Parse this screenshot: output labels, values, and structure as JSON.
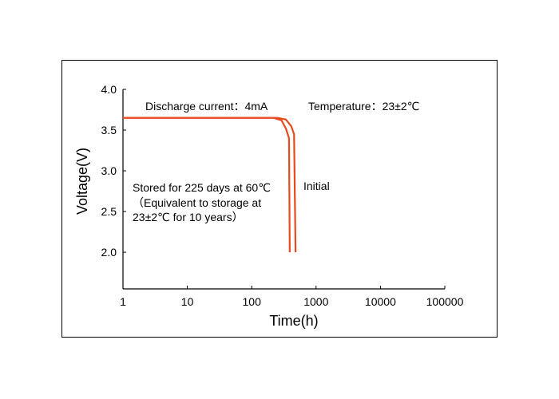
{
  "chart_data": {
    "type": "line",
    "xlabel": "Time(h)",
    "ylabel": "Voltage(V)",
    "x_scale": "log",
    "xlim": [
      1,
      100000
    ],
    "ylim": [
      1.55,
      4.0
    ],
    "x_ticks": [
      1,
      10,
      100,
      1000,
      10000,
      100000
    ],
    "x_tick_labels": [
      "1",
      "10",
      "100",
      "1000",
      "10000",
      "100000"
    ],
    "y_ticks": [
      2.0,
      2.5,
      3.0,
      3.5,
      4.0
    ],
    "y_tick_labels": [
      "2.0",
      "2.5",
      "3.0",
      "3.5",
      "4.0"
    ],
    "grid": false,
    "legend": "none",
    "series": [
      {
        "name": "Initial",
        "color": "#e8491d",
        "points": [
          [
            1,
            3.65
          ],
          [
            250,
            3.65
          ],
          [
            340,
            3.63
          ],
          [
            410,
            3.55
          ],
          [
            455,
            3.45
          ],
          [
            480,
            2.0
          ]
        ]
      },
      {
        "name": "Stored for 225 days at 60℃",
        "color": "#e8491d",
        "points": [
          [
            1,
            3.65
          ],
          [
            220,
            3.65
          ],
          [
            290,
            3.62
          ],
          [
            340,
            3.52
          ],
          [
            380,
            3.4
          ],
          [
            390,
            2.0
          ]
        ]
      }
    ],
    "annotations": {
      "discharge": "Discharge current：4mA",
      "temperature": "Temperature：23±2℃",
      "initial": "Initial",
      "stored_line1": "Stored for 225 days at 60℃",
      "stored_line2": "（Equivalent to storage at",
      "stored_line3": "23±2℃ for 10 years）"
    }
  }
}
